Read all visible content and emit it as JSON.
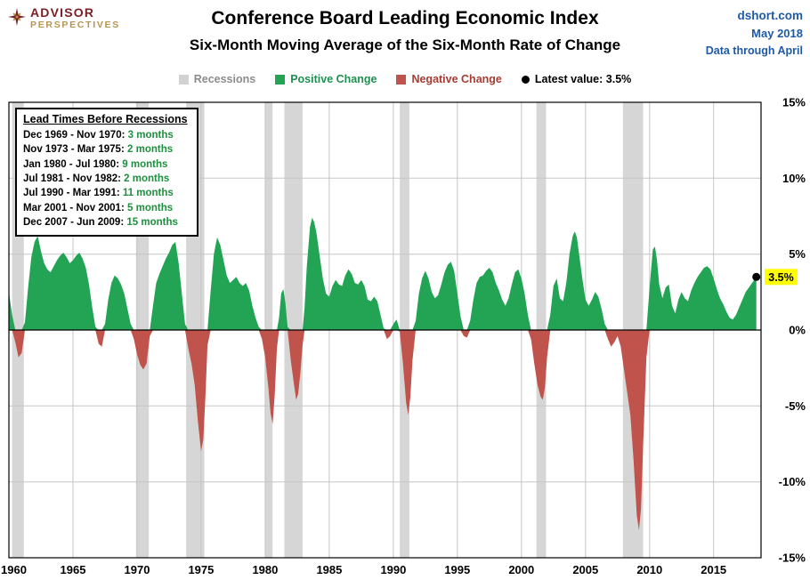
{
  "header": {
    "logo": {
      "line1": "ADVISOR",
      "line2": "PERSPECTIVES"
    },
    "title": "Conference Board Leading Economic Index",
    "subtitle": "Six-Month Moving Average of the Six-Month Rate of Change",
    "source": "dshort.com",
    "date": "May 2018",
    "data_note": "Data through April"
  },
  "legend": {
    "items": [
      {
        "label": "Recessions",
        "color": "#d2d2d2",
        "text_color": "#8c8c8c",
        "shape": "square"
      },
      {
        "label": "Positive Change",
        "color": "#23a455",
        "text_color": "#1e9150",
        "shape": "square"
      },
      {
        "label": "Negative Change",
        "color": "#c0544d",
        "text_color": "#a83c34",
        "shape": "square"
      },
      {
        "label": "Latest value: 3.5%",
        "color": "#000000",
        "text_color": "#000000",
        "shape": "circle"
      }
    ]
  },
  "lead_times": {
    "title": "Lead Times Before Recessions",
    "rows": [
      {
        "range": "Dec 1969 - Nov 1970:",
        "lead": "3 months"
      },
      {
        "range": "Nov 1973 - Mar 1975:",
        "lead": "2 months"
      },
      {
        "range": "Jan 1980 - Jul 1980:",
        "lead": "9 months"
      },
      {
        "range": "Jul 1981 - Nov 1982:",
        "lead": "2 months"
      },
      {
        "range": "Jul 1990 - Mar 1991:",
        "lead": "11 months"
      },
      {
        "range": "Mar 2001 - Nov 2001:",
        "lead": "5 months"
      },
      {
        "range": "Dec 2007 - Jun 2009:",
        "lead": "15 months"
      }
    ]
  },
  "chart_data": {
    "type": "area",
    "title": "Conference Board Leading Economic Index",
    "subtitle": "Six-Month Moving Average of the Six-Month Rate of Change",
    "xlabel": "",
    "ylabel": "",
    "xlim": [
      1960,
      2018.7
    ],
    "ylim": [
      -15,
      15
    ],
    "xticks": [
      1960,
      1965,
      1970,
      1975,
      1980,
      1985,
      1990,
      1995,
      2000,
      2005,
      2010,
      2015
    ],
    "yticks": [
      {
        "v": 15,
        "label": "15%"
      },
      {
        "v": 10,
        "label": "10%"
      },
      {
        "v": 5,
        "label": "5%"
      },
      {
        "v": 0,
        "label": "0%"
      },
      {
        "v": -5,
        "label": "-5%"
      },
      {
        "v": -10,
        "label": "-10%"
      },
      {
        "v": -15,
        "label": "-15%"
      }
    ],
    "legend_position": "top",
    "grid": true,
    "colors": {
      "positive": "#23a455",
      "negative": "#c0544d",
      "recession": "#d6d6d6",
      "grid": "#c6c6c6",
      "zero": "#000000",
      "highlight": "#ffff00"
    },
    "recessions": [
      [
        1960.25,
        1961.17
      ],
      [
        1969.92,
        1970.92
      ],
      [
        1973.83,
        1975.25
      ],
      [
        1980.0,
        1980.58
      ],
      [
        1981.5,
        1982.92
      ],
      [
        1990.5,
        1991.25
      ],
      [
        2001.17,
        2001.92
      ],
      [
        2007.92,
        2009.5
      ]
    ],
    "latest": {
      "x": 2018.33,
      "value": 3.5,
      "label": "3.5%"
    },
    "series": [
      {
        "name": "Six-month MA of six-month rate of change",
        "points": [
          [
            1960,
            2.5
          ],
          [
            1960.25,
            1
          ],
          [
            1960.5,
            -0.8
          ],
          [
            1960.75,
            -1.8
          ],
          [
            1961,
            -1.5
          ],
          [
            1961.25,
            0.5
          ],
          [
            1961.5,
            2.8
          ],
          [
            1961.75,
            4.8
          ],
          [
            1962,
            5.8
          ],
          [
            1962.25,
            6.2
          ],
          [
            1962.5,
            5.2
          ],
          [
            1962.75,
            4.4
          ],
          [
            1963,
            4
          ],
          [
            1963.25,
            3.8
          ],
          [
            1963.5,
            4.2
          ],
          [
            1963.75,
            4.6
          ],
          [
            1964,
            4.9
          ],
          [
            1964.25,
            5.1
          ],
          [
            1964.5,
            4.8
          ],
          [
            1964.75,
            4.4
          ],
          [
            1965,
            4.6
          ],
          [
            1965.25,
            4.9
          ],
          [
            1965.5,
            5.1
          ],
          [
            1965.75,
            4.7
          ],
          [
            1966,
            4.1
          ],
          [
            1966.25,
            3
          ],
          [
            1966.5,
            1.5
          ],
          [
            1966.75,
            0.2
          ],
          [
            1967,
            -0.9
          ],
          [
            1967.25,
            -1.1
          ],
          [
            1967.5,
            0.4
          ],
          [
            1967.75,
            2
          ],
          [
            1968,
            3.1
          ],
          [
            1968.25,
            3.6
          ],
          [
            1968.5,
            3.4
          ],
          [
            1968.75,
            3
          ],
          [
            1969,
            2.4
          ],
          [
            1969.25,
            1.4
          ],
          [
            1969.5,
            0.4
          ],
          [
            1969.75,
            -0.6
          ],
          [
            1970,
            -1.6
          ],
          [
            1970.25,
            -2.3
          ],
          [
            1970.5,
            -2.6
          ],
          [
            1970.75,
            -2.2
          ],
          [
            1971,
            -0.4
          ],
          [
            1971.25,
            1.6
          ],
          [
            1971.5,
            3.1
          ],
          [
            1971.75,
            3.7
          ],
          [
            1972,
            4.2
          ],
          [
            1972.25,
            4.7
          ],
          [
            1972.5,
            5.1
          ],
          [
            1972.75,
            5.6
          ],
          [
            1973,
            5.8
          ],
          [
            1973.25,
            4.4
          ],
          [
            1973.5,
            2.4
          ],
          [
            1973.75,
            0.4
          ],
          [
            1974,
            -1.2
          ],
          [
            1974.25,
            -2.2
          ],
          [
            1974.5,
            -3.6
          ],
          [
            1974.75,
            -6
          ],
          [
            1975,
            -8
          ],
          [
            1975.17,
            -7.2
          ],
          [
            1975.33,
            -4.5
          ],
          [
            1975.5,
            -1
          ],
          [
            1975.75,
            2.6
          ],
          [
            1976,
            5
          ],
          [
            1976.25,
            6.1
          ],
          [
            1976.5,
            5.6
          ],
          [
            1976.75,
            4.6
          ],
          [
            1977,
            3.6
          ],
          [
            1977.25,
            3.1
          ],
          [
            1977.5,
            3.3
          ],
          [
            1977.75,
            3.5
          ],
          [
            1978,
            3.1
          ],
          [
            1978.25,
            2.9
          ],
          [
            1978.5,
            3.1
          ],
          [
            1978.75,
            2.6
          ],
          [
            1979,
            1.6
          ],
          [
            1979.25,
            0.8
          ],
          [
            1979.5,
            0.2
          ],
          [
            1979.75,
            -0.6
          ],
          [
            1980,
            -1.8
          ],
          [
            1980.25,
            -3.8
          ],
          [
            1980.42,
            -5.5
          ],
          [
            1980.58,
            -6.2
          ],
          [
            1980.75,
            -4.2
          ],
          [
            1980.92,
            -1.2
          ],
          [
            1981.08,
            0.8
          ],
          [
            1981.25,
            2.4
          ],
          [
            1981.42,
            2.7
          ],
          [
            1981.58,
            1.8
          ],
          [
            1981.75,
            0.2
          ],
          [
            1982,
            -2
          ],
          [
            1982.25,
            -3.6
          ],
          [
            1982.42,
            -4.6
          ],
          [
            1982.58,
            -4.2
          ],
          [
            1982.75,
            -2.8
          ],
          [
            1982.92,
            -1
          ],
          [
            1983.08,
            1.5
          ],
          [
            1983.25,
            4.2
          ],
          [
            1983.5,
            6.8
          ],
          [
            1983.67,
            7.4
          ],
          [
            1983.83,
            7.1
          ],
          [
            1984,
            6.4
          ],
          [
            1984.25,
            4.9
          ],
          [
            1984.5,
            3.4
          ],
          [
            1984.75,
            2.4
          ],
          [
            1985,
            2.2
          ],
          [
            1985.25,
            2.9
          ],
          [
            1985.5,
            3.3
          ],
          [
            1985.75,
            3
          ],
          [
            1986,
            2.9
          ],
          [
            1986.25,
            3.6
          ],
          [
            1986.5,
            4
          ],
          [
            1986.75,
            3.7
          ],
          [
            1987,
            3.1
          ],
          [
            1987.25,
            3
          ],
          [
            1987.5,
            3.3
          ],
          [
            1987.75,
            2.9
          ],
          [
            1988,
            2
          ],
          [
            1988.25,
            1.9
          ],
          [
            1988.5,
            2.2
          ],
          [
            1988.75,
            1.9
          ],
          [
            1989,
            1
          ],
          [
            1989.25,
            0.1
          ],
          [
            1989.5,
            -0.6
          ],
          [
            1989.75,
            -0.4
          ],
          [
            1990,
            0.4
          ],
          [
            1990.25,
            0.7
          ],
          [
            1990.5,
            -0.1
          ],
          [
            1990.75,
            -2.2
          ],
          [
            1991,
            -4.8
          ],
          [
            1991.17,
            -5.6
          ],
          [
            1991.33,
            -4.4
          ],
          [
            1991.5,
            -2
          ],
          [
            1991.75,
            0.6
          ],
          [
            1992,
            2.4
          ],
          [
            1992.25,
            3.4
          ],
          [
            1992.5,
            3.9
          ],
          [
            1992.75,
            3.4
          ],
          [
            1993,
            2.5
          ],
          [
            1993.25,
            2.1
          ],
          [
            1993.5,
            2.3
          ],
          [
            1993.75,
            3
          ],
          [
            1994,
            3.8
          ],
          [
            1994.25,
            4.3
          ],
          [
            1994.5,
            4.5
          ],
          [
            1994.75,
            3.9
          ],
          [
            1995,
            2.4
          ],
          [
            1995.25,
            0.9
          ],
          [
            1995.5,
            -0.4
          ],
          [
            1995.75,
            -0.5
          ],
          [
            1996,
            0.6
          ],
          [
            1996.25,
            2
          ],
          [
            1996.5,
            3.1
          ],
          [
            1996.75,
            3.5
          ],
          [
            1997,
            3.6
          ],
          [
            1997.25,
            3.9
          ],
          [
            1997.5,
            4.1
          ],
          [
            1997.75,
            3.8
          ],
          [
            1998,
            3.1
          ],
          [
            1998.25,
            2.6
          ],
          [
            1998.5,
            2
          ],
          [
            1998.75,
            1.6
          ],
          [
            1999,
            2.1
          ],
          [
            1999.25,
            3
          ],
          [
            1999.5,
            3.8
          ],
          [
            1999.75,
            4
          ],
          [
            2000,
            3.4
          ],
          [
            2000.25,
            2.4
          ],
          [
            2000.5,
            1
          ],
          [
            2000.75,
            -0.6
          ],
          [
            2001,
            -2.2
          ],
          [
            2001.25,
            -3.6
          ],
          [
            2001.5,
            -4.4
          ],
          [
            2001.67,
            -4.6
          ],
          [
            2001.83,
            -3.8
          ],
          [
            2002,
            -1.8
          ],
          [
            2002.25,
            1
          ],
          [
            2002.5,
            2.9
          ],
          [
            2002.75,
            3.4
          ],
          [
            2003,
            2.1
          ],
          [
            2003.25,
            1.9
          ],
          [
            2003.5,
            3.1
          ],
          [
            2003.75,
            5
          ],
          [
            2004,
            6.2
          ],
          [
            2004.17,
            6.5
          ],
          [
            2004.33,
            6.1
          ],
          [
            2004.5,
            5
          ],
          [
            2004.75,
            3.4
          ],
          [
            2005,
            2
          ],
          [
            2005.25,
            1.6
          ],
          [
            2005.5,
            2
          ],
          [
            2005.75,
            2.5
          ],
          [
            2006,
            2.2
          ],
          [
            2006.25,
            1.4
          ],
          [
            2006.5,
            0.4
          ],
          [
            2006.75,
            -0.6
          ],
          [
            2007,
            -1.1
          ],
          [
            2007.25,
            -0.8
          ],
          [
            2007.5,
            -0.4
          ],
          [
            2007.75,
            -1.1
          ],
          [
            2008,
            -2.6
          ],
          [
            2008.25,
            -4.1
          ],
          [
            2008.5,
            -5.6
          ],
          [
            2008.75,
            -8.6
          ],
          [
            2009,
            -12.2
          ],
          [
            2009.17,
            -13.2
          ],
          [
            2009.33,
            -11.8
          ],
          [
            2009.5,
            -7.5
          ],
          [
            2009.75,
            -1.8
          ],
          [
            2010,
            2.8
          ],
          [
            2010.25,
            5.3
          ],
          [
            2010.42,
            5.5
          ],
          [
            2010.58,
            4.6
          ],
          [
            2010.75,
            3
          ],
          [
            2011,
            2.1
          ],
          [
            2011.25,
            2.8
          ],
          [
            2011.5,
            3
          ],
          [
            2011.75,
            1.6
          ],
          [
            2012,
            1.1
          ],
          [
            2012.25,
            2
          ],
          [
            2012.5,
            2.5
          ],
          [
            2012.75,
            2.1
          ],
          [
            2013,
            1.9
          ],
          [
            2013.25,
            2.6
          ],
          [
            2013.5,
            3.1
          ],
          [
            2013.75,
            3.5
          ],
          [
            2014,
            3.8
          ],
          [
            2014.25,
            4.1
          ],
          [
            2014.5,
            4.2
          ],
          [
            2014.75,
            4
          ],
          [
            2015,
            3.4
          ],
          [
            2015.25,
            2.7
          ],
          [
            2015.5,
            2.1
          ],
          [
            2015.75,
            1.7
          ],
          [
            2016,
            1.2
          ],
          [
            2016.25,
            0.8
          ],
          [
            2016.5,
            0.7
          ],
          [
            2016.75,
            1
          ],
          [
            2017,
            1.5
          ],
          [
            2017.25,
            2
          ],
          [
            2017.5,
            2.5
          ],
          [
            2017.75,
            2.8
          ],
          [
            2018,
            3.1
          ],
          [
            2018.33,
            3.5
          ]
        ]
      }
    ]
  }
}
